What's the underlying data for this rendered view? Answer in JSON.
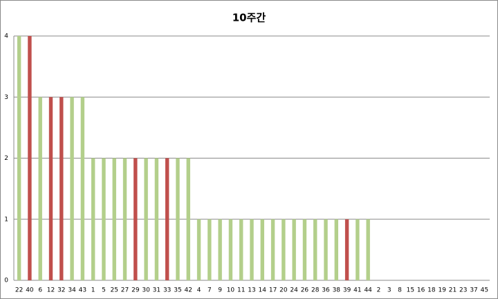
{
  "chart_data": {
    "type": "bar",
    "title": "10주간",
    "categories": [
      "22",
      "40",
      "6",
      "12",
      "32",
      "34",
      "43",
      "1",
      "5",
      "25",
      "27",
      "29",
      "30",
      "31",
      "33",
      "35",
      "42",
      "4",
      "7",
      "9",
      "10",
      "11",
      "13",
      "14",
      "17",
      "20",
      "24",
      "26",
      "28",
      "36",
      "38",
      "39",
      "41",
      "44",
      "2",
      "3",
      "8",
      "15",
      "16",
      "18",
      "19",
      "21",
      "23",
      "37",
      "45"
    ],
    "values": [
      4,
      4,
      3,
      3,
      3,
      3,
      3,
      2,
      2,
      2,
      2,
      2,
      2,
      2,
      2,
      2,
      2,
      1,
      1,
      1,
      1,
      1,
      1,
      1,
      1,
      1,
      1,
      1,
      1,
      1,
      1,
      1,
      1,
      1,
      0,
      0,
      0,
      0,
      0,
      0,
      0,
      0,
      0,
      0,
      0
    ],
    "colors": [
      "#b3cf8b",
      "#c0504d",
      "#b3cf8b",
      "#c0504d",
      "#c0504d",
      "#b3cf8b",
      "#b3cf8b",
      "#b3cf8b",
      "#b3cf8b",
      "#b3cf8b",
      "#b3cf8b",
      "#c0504d",
      "#b3cf8b",
      "#b3cf8b",
      "#c0504d",
      "#b3cf8b",
      "#b3cf8b",
      "#b3cf8b",
      "#b3cf8b",
      "#b3cf8b",
      "#b3cf8b",
      "#b3cf8b",
      "#b3cf8b",
      "#b3cf8b",
      "#b3cf8b",
      "#b3cf8b",
      "#b3cf8b",
      "#b3cf8b",
      "#b3cf8b",
      "#b3cf8b",
      "#b3cf8b",
      "#c0504d",
      "#b3cf8b",
      "#b3cf8b",
      "#b3cf8b",
      "#b3cf8b",
      "#b3cf8b",
      "#b3cf8b",
      "#b3cf8b",
      "#b3cf8b",
      "#b3cf8b",
      "#b3cf8b",
      "#b3cf8b",
      "#b3cf8b",
      "#b3cf8b"
    ],
    "ylim": [
      0,
      4
    ],
    "yticks": [
      0,
      1,
      2,
      3,
      4
    ],
    "grid": true
  }
}
